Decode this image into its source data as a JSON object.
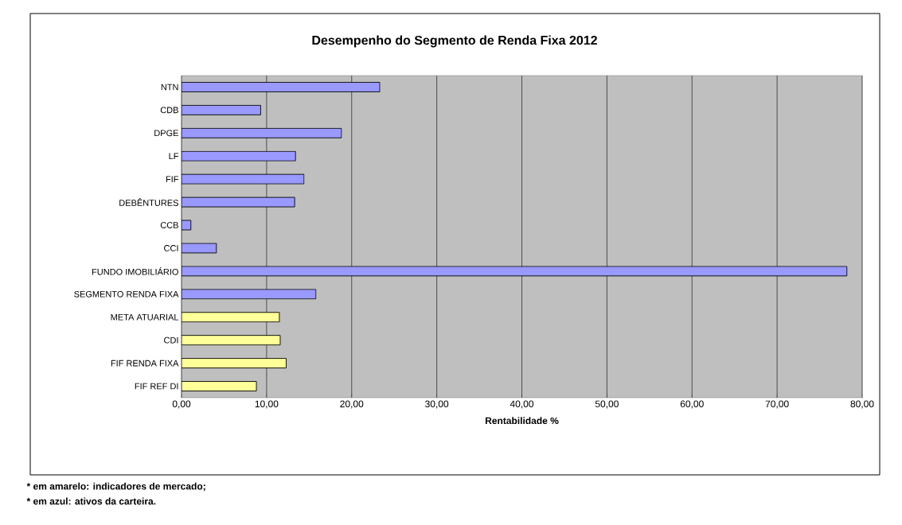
{
  "chart_data": {
    "type": "bar",
    "orientation": "horizontal",
    "title": "Desempenho do Segmento de Renda Fixa 2012",
    "xlabel": "Rentabilidade %",
    "categories": [
      "NTN",
      "CDB",
      "DPGE",
      "LF",
      "FIF",
      "DEBÊNTURES",
      "CCB",
      "CCI",
      "FUNDO IMOBILIÁRIO",
      "SEGMENTO RENDA FIXA",
      "META ATUARIAL",
      "CDI",
      "FIF RENDA FIXA",
      "FIF REF DI"
    ],
    "values": [
      23.3,
      9.3,
      18.8,
      13.4,
      14.4,
      13.3,
      1.1,
      4.1,
      78.2,
      15.8,
      11.5,
      11.6,
      12.3,
      8.8
    ],
    "colors": [
      "#9999ff",
      "#9999ff",
      "#9999ff",
      "#9999ff",
      "#9999ff",
      "#9999ff",
      "#9999ff",
      "#9999ff",
      "#9999ff",
      "#9999ff",
      "#ffff99",
      "#ffff99",
      "#ffff99",
      "#ffff99"
    ],
    "xlim": [
      0,
      80
    ],
    "xticks": [
      {
        "value": 0,
        "label": "0,00"
      },
      {
        "value": 10,
        "label": "10,00"
      },
      {
        "value": 20,
        "label": "20,00"
      },
      {
        "value": 30,
        "label": "30,00"
      },
      {
        "value": 40,
        "label": "40,00"
      },
      {
        "value": 50,
        "label": "50,00"
      },
      {
        "value": 60,
        "label": "60,00"
      },
      {
        "value": 70,
        "label": "70,00"
      },
      {
        "value": 80,
        "label": "80,00"
      }
    ],
    "grid": "x",
    "annotations": [
      "* em amarelo: indicadores de mercado;",
      "* em azul: ativos da carteira."
    ]
  }
}
